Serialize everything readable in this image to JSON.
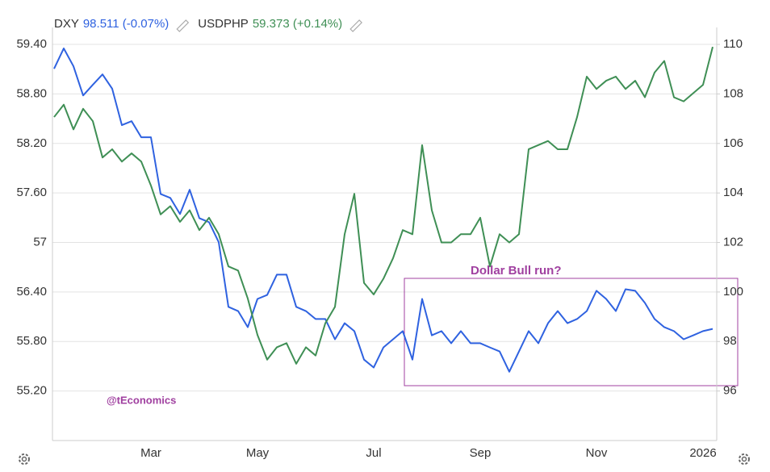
{
  "chart_data": {
    "type": "line",
    "series": [
      {
        "name": "DXY",
        "legend_value": "98.511 (-0.07%)",
        "color": "#2f62e0",
        "axis": "y2",
        "values": [
          109.02,
          109.84,
          109.12,
          107.94,
          108.37,
          108.79,
          108.21,
          106.74,
          106.9,
          106.25,
          106.25,
          103.96,
          103.8,
          103.15,
          104.13,
          102.98,
          102.82,
          102.01,
          99.4,
          99.23,
          98.58,
          99.72,
          99.88,
          100.7,
          100.7,
          99.4,
          99.23,
          98.91,
          98.91,
          98.09,
          98.74,
          98.42,
          97.27,
          96.95,
          97.76,
          98.09,
          98.42,
          97.27,
          99.72,
          98.25,
          98.42,
          97.93,
          98.42,
          97.93,
          97.93,
          97.76,
          97.6,
          96.78,
          97.6,
          98.42,
          97.93,
          98.74,
          99.23,
          98.74,
          98.91,
          99.23,
          100.05,
          99.72,
          99.23,
          100.11,
          100.05,
          99.56,
          98.91,
          98.58,
          98.42,
          98.09,
          98.25,
          98.42,
          98.51
        ]
      },
      {
        "name": "USDPHP",
        "legend_value": "59.373 (+0.14%)",
        "color": "#3f8f55",
        "values": [
          58.52,
          58.67,
          58.37,
          58.62,
          58.47,
          58.03,
          58.13,
          57.98,
          58.08,
          57.98,
          57.69,
          57.34,
          57.44,
          57.25,
          57.39,
          57.15,
          57.3,
          57.1,
          56.71,
          56.66,
          56.32,
          55.88,
          55.58,
          55.73,
          55.78,
          55.53,
          55.73,
          55.63,
          56.02,
          56.22,
          57.1,
          57.59,
          56.51,
          56.37,
          56.56,
          56.81,
          57.15,
          57.1,
          58.18,
          57.39,
          57.0,
          57.0,
          57.1,
          57.1,
          57.3,
          56.71,
          57.1,
          57.0,
          57.1,
          58.13,
          58.18,
          58.23,
          58.13,
          58.13,
          58.52,
          59.01,
          58.86,
          58.96,
          59.01,
          58.86,
          58.96,
          58.76,
          59.06,
          59.2,
          58.76,
          58.71,
          58.81,
          58.91,
          59.37
        ]
      }
    ],
    "categories": [
      null,
      null,
      null,
      null,
      null,
      null,
      null,
      null,
      null,
      null,
      "Mar",
      null,
      null,
      null,
      null,
      null,
      null,
      null,
      null,
      null,
      null,
      "May",
      null,
      null,
      null,
      null,
      null,
      null,
      null,
      null,
      null,
      null,
      null,
      "Jul",
      null,
      null,
      null,
      null,
      null,
      null,
      null,
      null,
      null,
      null,
      "Sep",
      null,
      null,
      null,
      null,
      null,
      null,
      null,
      null,
      null,
      null,
      null,
      "Nov",
      null,
      null,
      null,
      null,
      null,
      null,
      null,
      null,
      null,
      null,
      "2026",
      null
    ],
    "ylim": [
      54.6,
      59.6
    ],
    "yticks": [
      {
        "value": 55.2,
        "label": "55.20"
      },
      {
        "value": 55.8,
        "label": "55.80"
      },
      {
        "value": 56.4,
        "label": "56.40"
      },
      57,
      {
        "value": 57.6,
        "label": "57.60"
      },
      {
        "value": 58.2,
        "label": "58.20"
      },
      {
        "value": 58.8,
        "label": "58.80"
      },
      {
        "value": 59.4,
        "label": "59.40"
      }
    ],
    "y2lim": [
      94,
      110.667
    ],
    "y2ticks": [
      96,
      98,
      100,
      102,
      104,
      106,
      108,
      110
    ],
    "grid": true,
    "annotations": [
      "Dollar Bull run?",
      "@tEconomics"
    ]
  }
}
